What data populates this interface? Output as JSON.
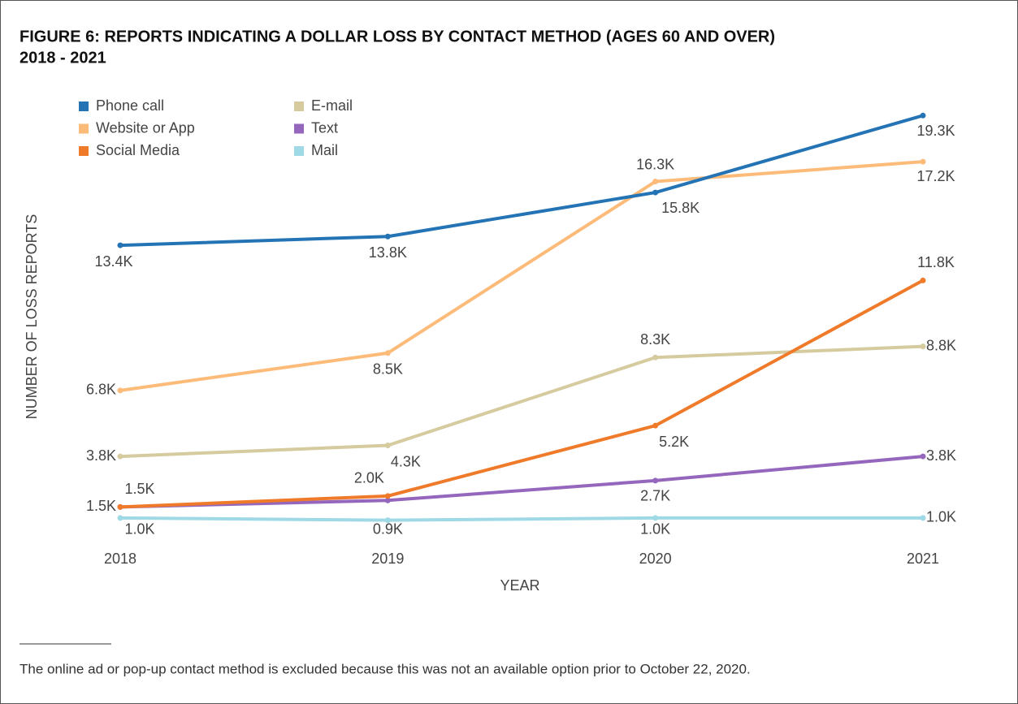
{
  "chart_data": {
    "type": "line",
    "title": [
      "FIGURE 6: REPORTS INDICATING A DOLLAR LOSS BY CONTACT METHOD (AGES 60 AND OVER)",
      "2018 - 2021"
    ],
    "x_label": "YEAR",
    "y_label": "NUMBER OF LOSS REPORTS",
    "categories": [
      "2018",
      "2019",
      "2020",
      "2021"
    ],
    "ylim": [
      0,
      24000
    ],
    "series": [
      {
        "name": "Phone call",
        "color": "#2474b5",
        "values": [
          13400,
          13800,
          15800,
          19300
        ],
        "value_labels": [
          "13.4K",
          "13.8K",
          "15.8K",
          "19.3K"
        ]
      },
      {
        "name": "Website or App",
        "color": "#fdbb7a",
        "values": [
          6800,
          8500,
          16300,
          17200
        ],
        "value_labels": [
          "6.8K",
          "8.5K",
          "16.3K",
          "17.2K"
        ]
      },
      {
        "name": "Social Media",
        "color": "#ef7a2a",
        "values": [
          1500,
          2000,
          5200,
          11800
        ],
        "value_labels": [
          "1.5K",
          "2.0K",
          "5.2K",
          "11.8K"
        ]
      },
      {
        "name": "E-mail",
        "color": "#d5cb9e",
        "values": [
          3800,
          4300,
          8300,
          8800
        ],
        "value_labels": [
          "3.8K",
          "4.3K",
          "8.3K",
          "8.8K"
        ]
      },
      {
        "name": "Text",
        "color": "#9467bd",
        "values": [
          1500,
          1800,
          2700,
          3800
        ],
        "value_labels": [
          "1.5K",
          null,
          "2.7K",
          "3.8K"
        ]
      },
      {
        "name": "Mail",
        "color": "#9ed9e5",
        "values": [
          1000,
          900,
          1000,
          1000
        ],
        "value_labels": [
          "1.0K",
          "0.9K",
          "1.0K",
          "1.0K"
        ]
      }
    ],
    "footnote": "The online ad or pop-up contact method is excluded because this was not an available option prior to October 22, 2020."
  }
}
